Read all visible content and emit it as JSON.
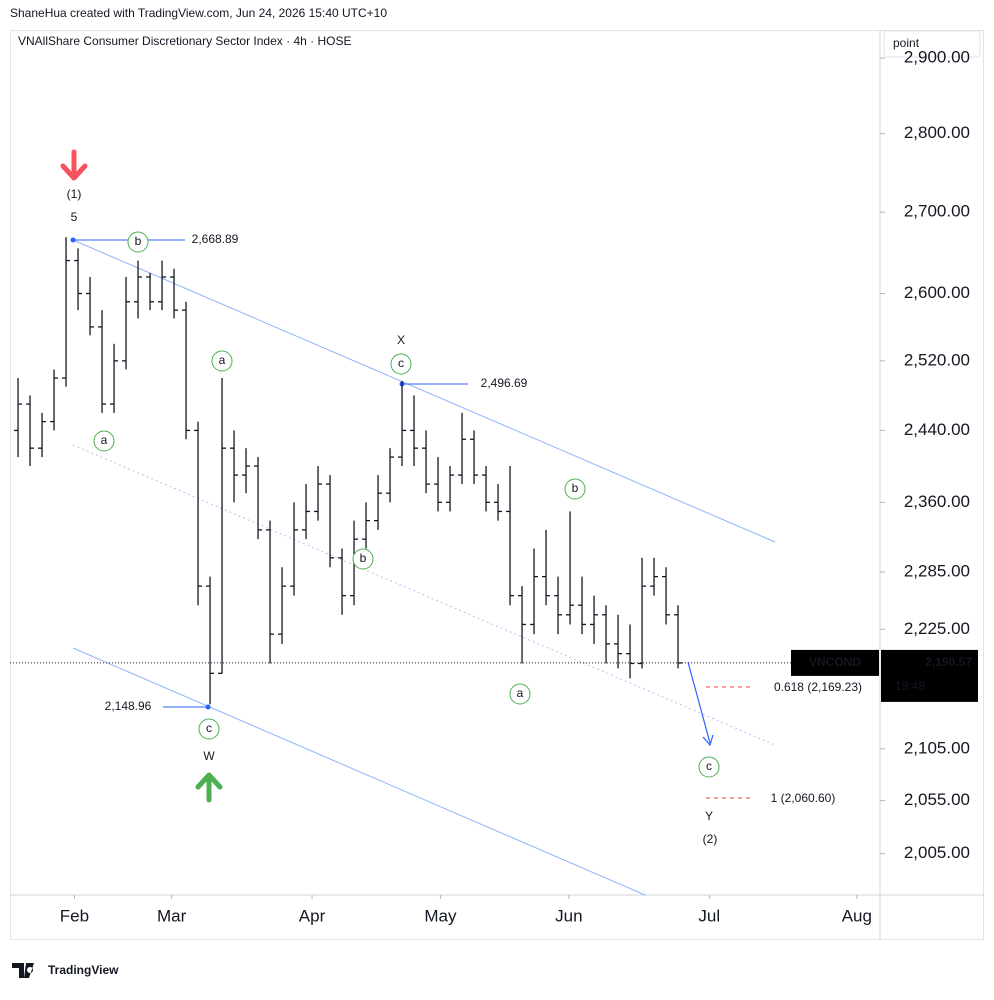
{
  "chart_data": {
    "type": "ohlc",
    "credit": "ShaneHua created with TradingView.com, Jun 24, 2026 15:40 UTC+10",
    "title": "VNAllShare Consumer Discretionary Sector Index · 4h · HOSE",
    "unit_label": "point",
    "symbol": "VNCOND",
    "last_price": {
      "value": 2190.57,
      "label": "2,190.57"
    },
    "countdown": "19:48",
    "brand": "TradingView",
    "color": "#131722",
    "log_scale": true,
    "grid": false,
    "ylim": [
      1967,
      2938
    ],
    "yticks": [
      {
        "value": 2900,
        "label": "2,900.00"
      },
      {
        "value": 2800,
        "label": "2,800.00"
      },
      {
        "value": 2700,
        "label": "2,700.00"
      },
      {
        "value": 2600,
        "label": "2,600.00"
      },
      {
        "value": 2520,
        "label": "2,520.00"
      },
      {
        "value": 2440,
        "label": "2,440.00"
      },
      {
        "value": 2360,
        "label": "2,360.00"
      },
      {
        "value": 2285,
        "label": "2,285.00"
      },
      {
        "value": 2225,
        "label": "2,225.00"
      },
      {
        "value": 2105,
        "label": "2,105.00"
      },
      {
        "value": 2055,
        "label": "2,055.00"
      },
      {
        "value": 2005,
        "label": "2,005.00"
      }
    ],
    "xlim": [
      -0.67,
      71.83
    ],
    "xticks": [
      {
        "value": 4.7,
        "label": "Feb"
      },
      {
        "value": 12.8,
        "label": "Mar"
      },
      {
        "value": 24.5,
        "label": "Apr"
      },
      {
        "value": 35.2,
        "label": "May"
      },
      {
        "value": 45.9,
        "label": "Jun"
      },
      {
        "value": 57.6,
        "label": "Jul"
      },
      {
        "value": 69.9,
        "label": "Aug"
      }
    ],
    "ohlc": {
      "open": [
        2440,
        2470,
        2420,
        2450,
        2500,
        2640,
        2600,
        2560,
        2470,
        2520,
        2590,
        2620,
        2590,
        2620,
        2580,
        2440,
        2270,
        2180,
        2420,
        2390,
        2400,
        2330,
        2220,
        2270,
        2330,
        2350,
        2380,
        2300,
        2260,
        2320,
        2340,
        2370,
        2410,
        2440,
        2420,
        2380,
        2360,
        2390,
        2430,
        2390,
        2360,
        2350,
        2260,
        2230,
        2280,
        2260,
        2240,
        2250,
        2230,
        2240,
        2210,
        2200,
        2190,
        2270,
        2280,
        2240
      ],
      "high": [
        2500,
        2480,
        2460,
        2510,
        2668.89,
        2655,
        2620,
        2580,
        2540,
        2620,
        2640,
        2625,
        2640,
        2630,
        2590,
        2450,
        2280,
        2500,
        2440,
        2420,
        2410,
        2340,
        2290,
        2360,
        2380,
        2400,
        2390,
        2310,
        2340,
        2360,
        2390,
        2420,
        2496.69,
        2480,
        2440,
        2410,
        2400,
        2460,
        2440,
        2400,
        2380,
        2400,
        2270,
        2310,
        2330,
        2280,
        2350,
        2280,
        2260,
        2250,
        2240,
        2230,
        2300,
        2300,
        2290,
        2250
      ],
      "low": [
        2410,
        2400,
        2410,
        2440,
        2490,
        2580,
        2550,
        2460,
        2460,
        2510,
        2570,
        2580,
        2580,
        2570,
        2430,
        2250,
        2148.96,
        2180,
        2360,
        2370,
        2320,
        2190,
        2210,
        2260,
        2320,
        2340,
        2290,
        2240,
        2250,
        2310,
        2330,
        2360,
        2400,
        2400,
        2370,
        2350,
        2350,
        2380,
        2380,
        2350,
        2340,
        2250,
        2190,
        2220,
        2250,
        2220,
        2230,
        2220,
        2210,
        2190,
        2185,
        2175,
        2185,
        2260,
        2230,
        2185
      ],
      "close": [
        2470,
        2420,
        2450,
        2500,
        2640,
        2600,
        2560,
        2470,
        2520,
        2590,
        2620,
        2590,
        2620,
        2580,
        2440,
        2270,
        2180,
        2420,
        2390,
        2400,
        2330,
        2220,
        2270,
        2330,
        2350,
        2380,
        2300,
        2260,
        2320,
        2340,
        2370,
        2410,
        2440,
        2420,
        2380,
        2360,
        2390,
        2430,
        2390,
        2360,
        2350,
        2260,
        2230,
        2280,
        2260,
        2240,
        2250,
        2230,
        2240,
        2210,
        2200,
        2190,
        2270,
        2280,
        2240,
        2190.57
      ]
    },
    "annotations": [
      {
        "text": "(1)",
        "color": "#2962ff",
        "circled": false
      },
      {
        "text": "5",
        "color": "#f23645",
        "circled": false
      },
      {
        "text": "b",
        "color": "#4caf50",
        "circled": true
      },
      {
        "text": "2,668.89",
        "color": "#2962ff",
        "circled": false
      },
      {
        "text": "a",
        "color": "#4caf50",
        "circled": true
      },
      {
        "text": "a",
        "color": "#4caf50",
        "circled": true
      },
      {
        "text": "c",
        "color": "#4caf50",
        "circled": true
      },
      {
        "text": "W",
        "color": "#f23645",
        "circled": false
      },
      {
        "text": "2,148.96",
        "color": "#2962ff",
        "circled": false
      },
      {
        "text": "X",
        "color": "#f23645",
        "circled": false
      },
      {
        "text": "c",
        "color": "#4caf50",
        "circled": true
      },
      {
        "text": "2,496.69",
        "color": "#2962ff",
        "circled": false
      },
      {
        "text": "b",
        "color": "#4caf50",
        "circled": true
      },
      {
        "text": "b",
        "color": "#4caf50",
        "circled": true
      },
      {
        "text": "a",
        "color": "#4caf50",
        "circled": true
      },
      {
        "text": "c",
        "color": "#4caf50",
        "circled": true
      },
      {
        "text": "Y",
        "color": "#f23645",
        "circled": false
      },
      {
        "text": "(2)",
        "color": "#2962ff",
        "circled": false
      },
      {
        "text": "0.618 (2,169.23)",
        "color": "#f23645",
        "circled": false
      },
      {
        "text": "1 (2,060.60)",
        "color": "#f23645",
        "circled": false
      }
    ]
  }
}
